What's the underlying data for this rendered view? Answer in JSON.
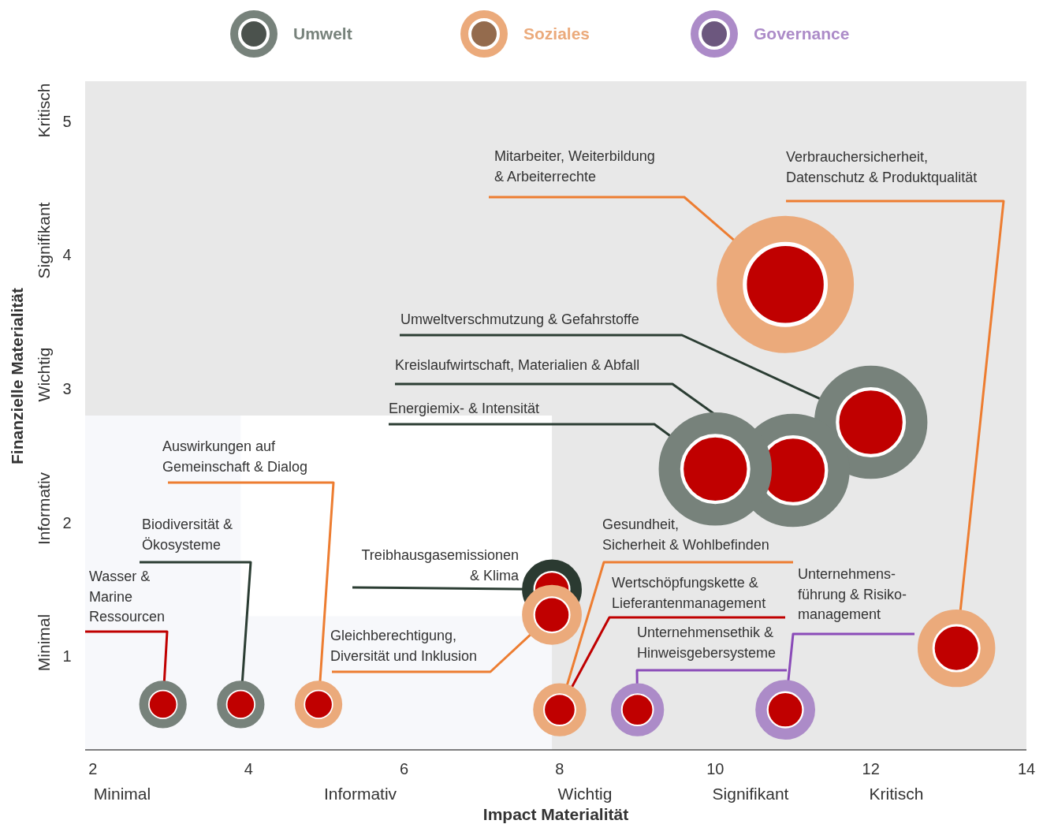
{
  "chart_data": {
    "type": "bubble",
    "xlabel": "Impact Materialität",
    "ylabel": "Finanzielle Materialität",
    "xlim": [
      1.9,
      14
    ],
    "xticks": [
      2,
      4,
      6,
      8,
      10,
      12,
      14
    ],
    "ylim": [
      0.3,
      5.3
    ],
    "yticks": [
      1,
      2,
      3,
      4,
      5
    ],
    "legend": "top",
    "grid": false,
    "bands": [
      {
        "axis": "x",
        "from": 1.9,
        "to": 3.9,
        "color": "#f7f8fb"
      },
      {
        "axis": "y",
        "from": 0.3,
        "to": 1.3,
        "color": "#f7f8fb"
      },
      {
        "axis": "y",
        "from": 2.8,
        "to": 5.3,
        "color": "#e8e8e8"
      },
      {
        "axis": "x",
        "from": 7.9,
        "to": 14,
        "color": "#e8e8e8"
      }
    ],
    "series": [
      {
        "name": "Umwelt",
        "color": "#77827b",
        "colors": [
          "#77827b",
          "#77827b",
          "#2b3a31",
          "#77827b",
          "#77827b",
          "#77827b"
        ],
        "x": [
          2.9,
          3.9,
          7.9,
          12.0,
          11.0,
          10.0
        ],
        "values": [
          0.64,
          0.64,
          1.5,
          2.75,
          2.39,
          2.4
        ],
        "sizes": [
          0.12,
          0.12,
          0.19,
          0.68,
          0.68,
          0.68
        ]
      },
      {
        "name": "Soziales",
        "color": "#ebaa7b",
        "x": [
          4.9,
          7.9,
          8.0,
          13.1,
          10.9
        ],
        "values": [
          0.64,
          1.31,
          0.6,
          1.06,
          3.78
        ],
        "sizes": [
          0.12,
          0.19,
          0.15,
          0.32,
          1
        ]
      },
      {
        "name": "Governance",
        "color": "#ac8bc8",
        "x": [
          9.0,
          10.9
        ],
        "values": [
          0.6,
          0.6
        ],
        "sizes": [
          0.15,
          0.19
        ]
      }
    ],
    "annotations": [
      {
        "text": "Wasser &\nMarine\nRessourcen",
        "x": 2.9,
        "y": 0.64
      },
      {
        "text": "Biodiversität &\nÖkosysteme",
        "x": 3.9,
        "y": 0.64
      },
      {
        "text": "Auswirkungen auf\nGemeinschaft & Dialog",
        "x": 4.9,
        "y": 0.64
      },
      {
        "text": "Treibhausgasemissionen\n& Klima",
        "x": 7.9,
        "y": 1.5
      },
      {
        "text": "Gleichberechtigung,\nDiversität und Inklusion",
        "x": 7.9,
        "y": 1.31
      },
      {
        "text": "Gesundheit,\nSicherheit & Wohlbefinden",
        "x": 8.0,
        "y": 0.6
      },
      {
        "text": "Wertschöpfungskette &\nLieferantenmanagement",
        "x": 8.0,
        "y": 0.6
      },
      {
        "text": "Unternehmensethik &\nHinweisgebersysteme",
        "x": 9.0,
        "y": 0.6
      },
      {
        "text": "Unternehmens-\nführung & Risiko-\nmanagement",
        "x": 10.9,
        "y": 0.6
      },
      {
        "text": "Verbrauchersicherheit,\nDatenschutz & Produktqualität",
        "x": 13.1,
        "y": 1.06
      },
      {
        "text": "Mitarbeiter, Weiterbildung\n& Arbeiterrechte",
        "x": 10.9,
        "y": 3.78
      },
      {
        "text": "Umweltverschmutzung & Gefahrstoffe",
        "x": 12.0,
        "y": 2.75
      },
      {
        "text": "Kreislaufwirtschaft, Materialien & Abfall",
        "x": 11.0,
        "y": 2.39
      },
      {
        "text": "Energiemix- & Intensität",
        "x": 10.0,
        "y": 2.4
      },
      "Minimal",
      "Informativ",
      "Wichtig",
      "Signifikant",
      "Kritisch",
      "Minimal",
      "Informativ",
      "Wichtig",
      "Signifikant",
      "Kritisch"
    ]
  }
}
